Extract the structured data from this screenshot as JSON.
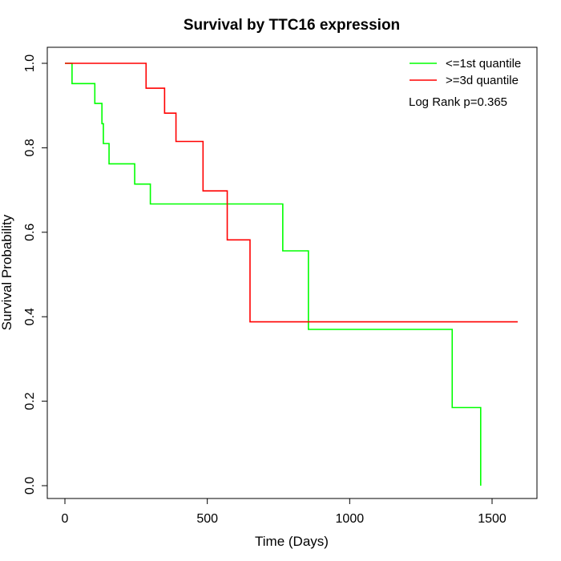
{
  "chart_data": {
    "type": "line",
    "step": true,
    "title": "Survival by TTC16 expression",
    "xlabel": "Time (Days)",
    "ylabel": "Survival Probability",
    "xlim": [
      0,
      1650
    ],
    "ylim": [
      0,
      1.0
    ],
    "x_ticks": [
      0,
      500,
      1000,
      1500
    ],
    "x_tick_labels": [
      "0",
      "500",
      "1000",
      "1500"
    ],
    "y_ticks": [
      0,
      0.2,
      0.4,
      0.6,
      0.8,
      1.0
    ],
    "y_tick_labels": [
      "0.0",
      "0.2",
      "0.4",
      "0.6",
      "0.8",
      "1.0"
    ],
    "grid": false,
    "legend_position": "top-right",
    "annotation": "Log Rank p=0.365",
    "series": [
      {
        "name": "<=1st quantile",
        "color": "#00ff00",
        "x": [
          0,
          25,
          105,
          130,
          135,
          155,
          245,
          300,
          765,
          855,
          1360,
          1460,
          1460
        ],
        "y": [
          1.0,
          0.952,
          0.905,
          0.857,
          0.81,
          0.762,
          0.714,
          0.667,
          0.556,
          0.37,
          0.185,
          0.185,
          0.0
        ]
      },
      {
        "name": ">=3d quantile",
        "color": "#ff0000",
        "x": [
          0,
          285,
          350,
          390,
          485,
          570,
          650,
          1590
        ],
        "y": [
          1.0,
          0.941,
          0.882,
          0.815,
          0.698,
          0.582,
          0.388,
          0.388
        ]
      }
    ]
  }
}
